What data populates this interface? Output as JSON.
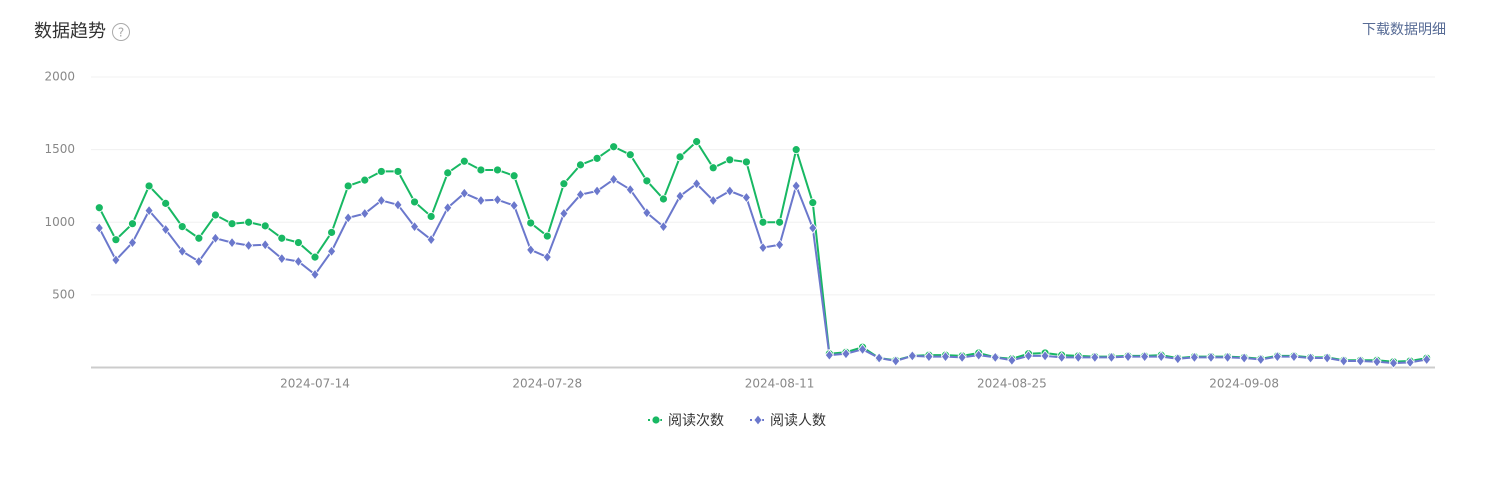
{
  "chart_data": {
    "type": "line",
    "title": "数据趋势",
    "help": "?",
    "download": "下载数据明细",
    "categories": [
      null,
      null,
      null,
      null,
      null,
      null,
      null,
      null,
      null,
      null,
      null,
      null,
      null,
      "2024-07-14",
      null,
      null,
      null,
      null,
      null,
      null,
      null,
      null,
      null,
      null,
      null,
      null,
      null,
      "2024-07-28",
      null,
      null,
      null,
      null,
      null,
      null,
      null,
      null,
      null,
      null,
      null,
      null,
      null,
      "2024-08-11",
      null,
      null,
      null,
      null,
      null,
      null,
      null,
      null,
      null,
      null,
      null,
      null,
      null,
      "2024-08-25",
      null,
      null,
      null,
      null,
      null,
      null,
      null,
      null,
      null,
      null,
      null,
      null,
      null,
      "2024-09-08",
      null,
      null,
      null,
      null,
      null,
      null,
      null,
      null,
      null,
      null,
      null
    ],
    "series": [
      {
        "name": "阅读次数",
        "color": "#18b863",
        "marker": "circle",
        "values": [
          1100,
          880,
          990,
          1250,
          1130,
          970,
          890,
          1050,
          990,
          1000,
          975,
          890,
          860,
          760,
          930,
          1250,
          1290,
          1350,
          1350,
          1140,
          1040,
          1340,
          1420,
          1360,
          1360,
          1320,
          995,
          905,
          1265,
          1395,
          1440,
          1520,
          1465,
          1285,
          1160,
          1450,
          1555,
          1375,
          1430,
          1415,
          1000,
          1000,
          1500,
          1135,
          95,
          105,
          140,
          65,
          50,
          80,
          85,
          85,
          80,
          100,
          70,
          60,
          95,
          100,
          85,
          80,
          75,
          75,
          80,
          80,
          85,
          65,
          75,
          75,
          75,
          70,
          60,
          80,
          80,
          70,
          70,
          50,
          50,
          50,
          40,
          45,
          65
        ]
      },
      {
        "name": "阅读人数",
        "color": "#6b78cc",
        "marker": "diamond",
        "values": [
          960,
          740,
          860,
          1080,
          950,
          800,
          730,
          890,
          860,
          840,
          845,
          750,
          730,
          640,
          800,
          1030,
          1060,
          1150,
          1120,
          970,
          880,
          1100,
          1200,
          1150,
          1155,
          1115,
          810,
          760,
          1060,
          1190,
          1215,
          1295,
          1225,
          1065,
          970,
          1180,
          1265,
          1150,
          1215,
          1170,
          825,
          845,
          1250,
          960,
          85,
          95,
          125,
          65,
          45,
          80,
          75,
          75,
          70,
          85,
          70,
          50,
          80,
          80,
          70,
          70,
          70,
          70,
          75,
          75,
          75,
          60,
          70,
          70,
          70,
          65,
          55,
          75,
          75,
          65,
          65,
          45,
          45,
          40,
          30,
          35,
          55
        ]
      }
    ],
    "ylim": [
      0,
      2000
    ],
    "yticks": [
      500,
      1000,
      1500,
      2000
    ],
    "grid": true
  }
}
